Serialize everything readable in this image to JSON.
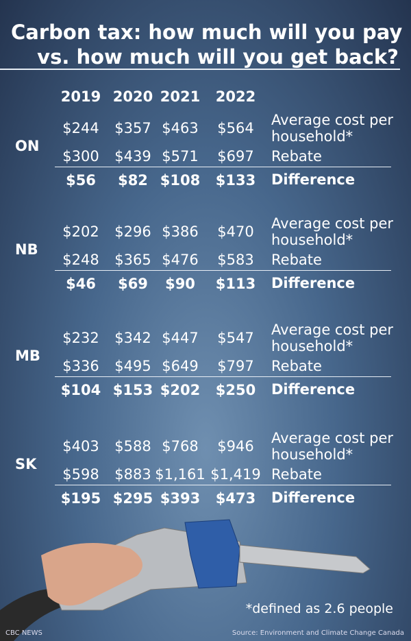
{
  "header": {
    "title_line1": "Carbon tax: how much will you pay",
    "title_line2": "vs. how much will you get back?"
  },
  "table": {
    "years": [
      "2019",
      "2020",
      "2021",
      "2022"
    ],
    "row_labels": {
      "cost": "Average cost per household*",
      "rebate": "Rebate",
      "difference": "Difference"
    },
    "provinces": [
      {
        "name": "ON",
        "cost": [
          "$244",
          "$357",
          "$463",
          "$564"
        ],
        "rebate": [
          "$300",
          "$439",
          "$571",
          "$697"
        ],
        "difference": [
          "$56",
          "$82",
          "$108",
          "$133"
        ]
      },
      {
        "name": "NB",
        "cost": [
          "$202",
          "$296",
          "$386",
          "$470"
        ],
        "rebate": [
          "$248",
          "$365",
          "$476",
          "$583"
        ],
        "difference": [
          "$46",
          "$69",
          "$90",
          "$113"
        ]
      },
      {
        "name": "MB",
        "cost": [
          "$232",
          "$342",
          "$447",
          "$547"
        ],
        "rebate": [
          "$336",
          "$495",
          "$649",
          "$797"
        ],
        "difference": [
          "$104",
          "$153",
          "$202",
          "$250"
        ]
      },
      {
        "name": "SK",
        "cost": [
          "$403",
          "$588",
          "$768",
          "$946"
        ],
        "rebate": [
          "$598",
          "$883",
          "$1,161",
          "$1,419"
        ],
        "difference": [
          "$195",
          "$295",
          "$393",
          "$473"
        ]
      }
    ]
  },
  "footnote": "*defined as 2.6 people",
  "credit": "CBC NEWS",
  "source": "Source: Environment and Climate Change Canada"
}
